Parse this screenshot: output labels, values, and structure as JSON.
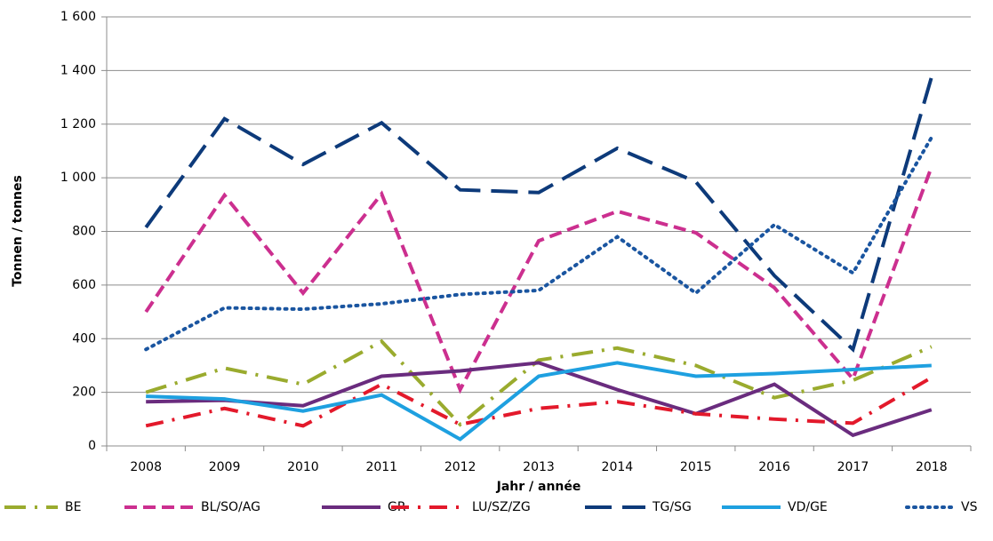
{
  "chart_data": {
    "type": "line",
    "y_label": "Tonnen / tonnes",
    "x_label": "Jahr / année",
    "categories": [
      "2008",
      "2009",
      "2010",
      "2011",
      "2012",
      "2013",
      "2014",
      "2015",
      "2016",
      "2017",
      "2018"
    ],
    "series": [
      {
        "name": "BE",
        "color": "#9aab2e",
        "values": [
          200,
          290,
          230,
          390,
          80,
          320,
          365,
          300,
          180,
          245,
          370
        ]
      },
      {
        "name": "BL/SO/AG",
        "color": "#cc2f8f",
        "values": [
          500,
          935,
          570,
          940,
          210,
          765,
          875,
          795,
          590,
          250,
          1040
        ]
      },
      {
        "name": "GR",
        "color": "#6a2c7e",
        "values": [
          165,
          170,
          150,
          260,
          280,
          310,
          210,
          120,
          230,
          40,
          135
        ]
      },
      {
        "name": "LU/SZ/ZG",
        "color": "#e3192b",
        "values": [
          75,
          140,
          75,
          230,
          80,
          140,
          165,
          120,
          100,
          85,
          255
        ]
      },
      {
        "name": "TG/SG",
        "color": "#0d3a7a",
        "values": [
          815,
          1220,
          1050,
          1205,
          955,
          945,
          1110,
          985,
          635,
          360,
          1375
        ]
      },
      {
        "name": "VD/GE",
        "color": "#1ea0e0",
        "values": [
          185,
          175,
          130,
          190,
          25,
          260,
          310,
          260,
          270,
          285,
          300
        ]
      },
      {
        "name": "VS",
        "color": "#1a55a0",
        "values": [
          360,
          515,
          510,
          530,
          565,
          580,
          780,
          570,
          825,
          645,
          1150
        ]
      }
    ],
    "ylim": [
      0,
      1600
    ],
    "yticks": [
      0,
      200,
      400,
      600,
      800,
      {
        "value": 1000,
        "label": "1 000"
      },
      {
        "value": 1200,
        "label": "1 200"
      },
      {
        "value": 1400,
        "label": "1 400"
      },
      {
        "value": 1600,
        "label": "1 600"
      }
    ],
    "grid": true,
    "legend": "bottom"
  }
}
